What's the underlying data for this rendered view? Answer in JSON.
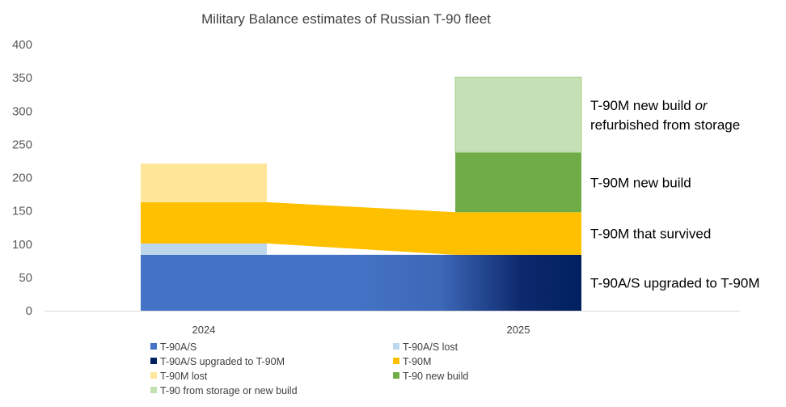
{
  "chart_data": {
    "type": "bar",
    "title": "Military Balance estimates of Russian T-90 fleet",
    "categories": [
      "2024",
      "2025"
    ],
    "ylim": [
      0,
      400
    ],
    "yticks": [
      0,
      50,
      100,
      150,
      200,
      250,
      300,
      350,
      400
    ],
    "grid": false,
    "legend_position": "bottom",
    "series": [
      {
        "name": "T-90A/S",
        "values": [
          84,
          0
        ],
        "color": "#4472C4"
      },
      {
        "name": "T-90A/S lost",
        "values": [
          17,
          0
        ],
        "color": "#BDD7EE"
      },
      {
        "name": "T-90A/S upgraded to T-90M",
        "values": [
          0,
          84
        ],
        "color": "#002060"
      },
      {
        "name": "T-90M",
        "values": [
          62,
          64
        ],
        "color": "#FFC000"
      },
      {
        "name": "T-90M lost",
        "values": [
          58,
          0
        ],
        "color": "#FFE699"
      },
      {
        "name": "T-90 new build",
        "values": [
          0,
          90
        ],
        "color": "#70AD47"
      },
      {
        "name": "T-90 from storage or new build",
        "values": [
          0,
          113
        ],
        "color": "#C5E0B4"
      }
    ],
    "annotations": [
      {
        "lines": [
          "T-90M new build or",
          "refurbished from storage"
        ],
        "italic_word": "or"
      },
      {
        "lines": [
          "T-90M new build"
        ]
      },
      {
        "lines": [
          "T-90M that survived"
        ]
      },
      {
        "lines": [
          "T-90A/S upgraded to T-90M"
        ]
      }
    ]
  }
}
